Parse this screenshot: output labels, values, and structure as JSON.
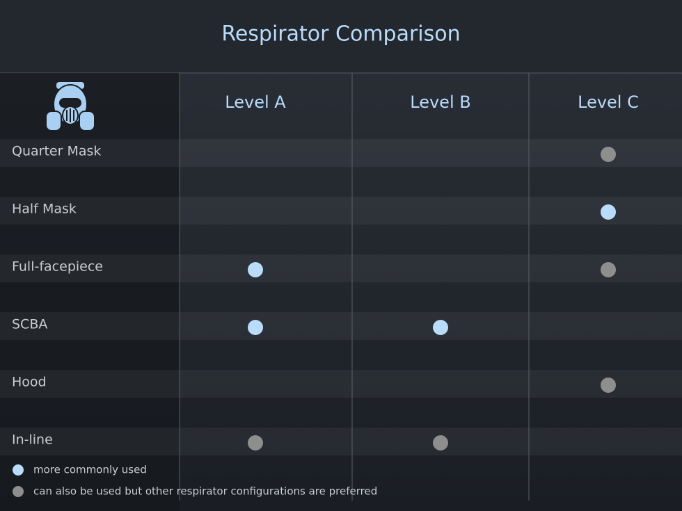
{
  "title": "Respirator Comparison",
  "table": {
    "columns": [
      "Level A",
      "Level B",
      "Level C"
    ],
    "rows": [
      {
        "label": "Quarter Mask",
        "cells": [
          null,
          null,
          "#8e8e8e"
        ]
      },
      {
        "label": "Half Mask",
        "cells": [
          null,
          null,
          "#b9dcfa"
        ]
      },
      {
        "label": "Full-facepiece",
        "cells": [
          "#b9dcfa",
          null,
          "#8e8e8e"
        ]
      },
      {
        "label": "SCBA",
        "cells": [
          "#b9dcfa",
          "#b9dcfa",
          null
        ]
      },
      {
        "label": "Hood",
        "cells": [
          null,
          null,
          "#8e8e8e"
        ]
      },
      {
        "label": "In-line",
        "cells": [
          "#8e8e8e",
          "#8e8e8e",
          null
        ]
      }
    ]
  },
  "legend": [
    {
      "label": "more commonly used",
      "color": "#b9dcfa"
    },
    {
      "label": "can also be used but other respirator configurations are preferred",
      "color": "#8e8e8e"
    }
  ]
}
